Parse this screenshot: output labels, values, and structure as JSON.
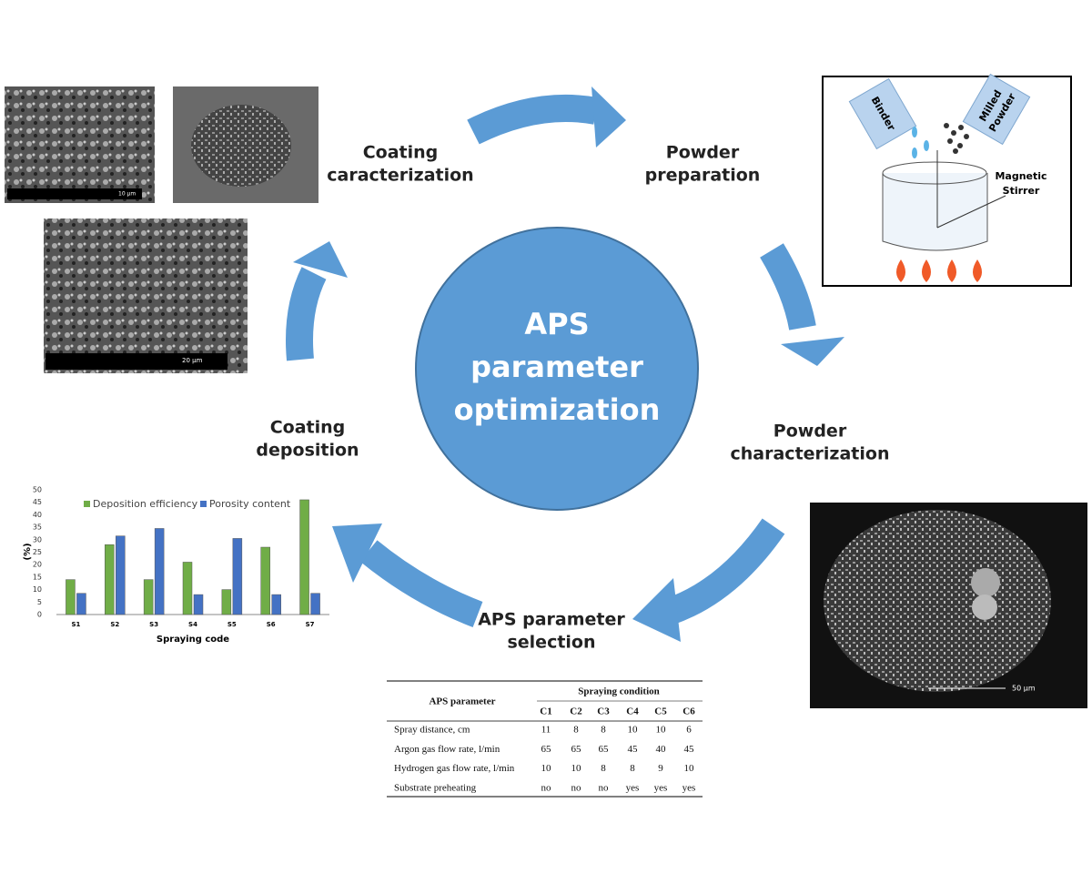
{
  "center_title": [
    "APS",
    "parameter",
    "optimization"
  ],
  "steps": {
    "coating_characterization": [
      "Coating",
      "caracterization"
    ],
    "powder_preparation": [
      "Powder",
      "preparation"
    ],
    "powder_characterization": [
      "Powder",
      "characterization"
    ],
    "parameter_selection": [
      "APS parameter",
      "selection"
    ],
    "coating_deposition": [
      "Coating",
      "deposition"
    ]
  },
  "illustration": {
    "binder": "Binder",
    "milled_powder": [
      "Milled",
      "Powder"
    ],
    "stirrer": [
      "Magnetic",
      "Stirrer"
    ]
  },
  "micrographs": {
    "scale_1": "10 µm",
    "scale_2": "20 µm",
    "scale_3": "50 µm"
  },
  "chart_data": {
    "type": "bar",
    "y_label": "(%)",
    "x_label": "Spraying code",
    "categories": [
      "S1",
      "S2",
      "S3",
      "S4",
      "S5",
      "S6",
      "S7"
    ],
    "series": [
      {
        "name": "Deposition efficiency",
        "color": "#70ad47",
        "values": [
          14,
          28,
          14,
          21,
          10,
          27,
          46
        ]
      },
      {
        "name": "Porosity content",
        "color": "#4472c4",
        "values": [
          8.5,
          31.5,
          34.5,
          8,
          30.5,
          8,
          8.5
        ]
      }
    ],
    "ylim": [
      0,
      50
    ],
    "yticks": [
      0,
      5,
      10,
      15,
      20,
      25,
      30,
      35,
      40,
      45,
      50
    ],
    "grid": false
  },
  "table": {
    "header": "APS parameter",
    "group_header": "Spraying condition",
    "columns": [
      "C1",
      "C2",
      "C3",
      "C4",
      "C5",
      "C6"
    ],
    "rows": [
      [
        "Spray distance, cm",
        11,
        8,
        8,
        10,
        10,
        6
      ],
      [
        "Argon gas flow rate, l/min",
        65,
        65,
        65,
        45,
        40,
        45
      ],
      [
        "Hydrogen gas flow rate, l/min",
        10,
        10,
        8,
        8,
        9,
        10
      ],
      [
        "Substrate preheating",
        "no",
        "no",
        "no",
        "yes",
        "yes",
        "yes"
      ]
    ]
  }
}
